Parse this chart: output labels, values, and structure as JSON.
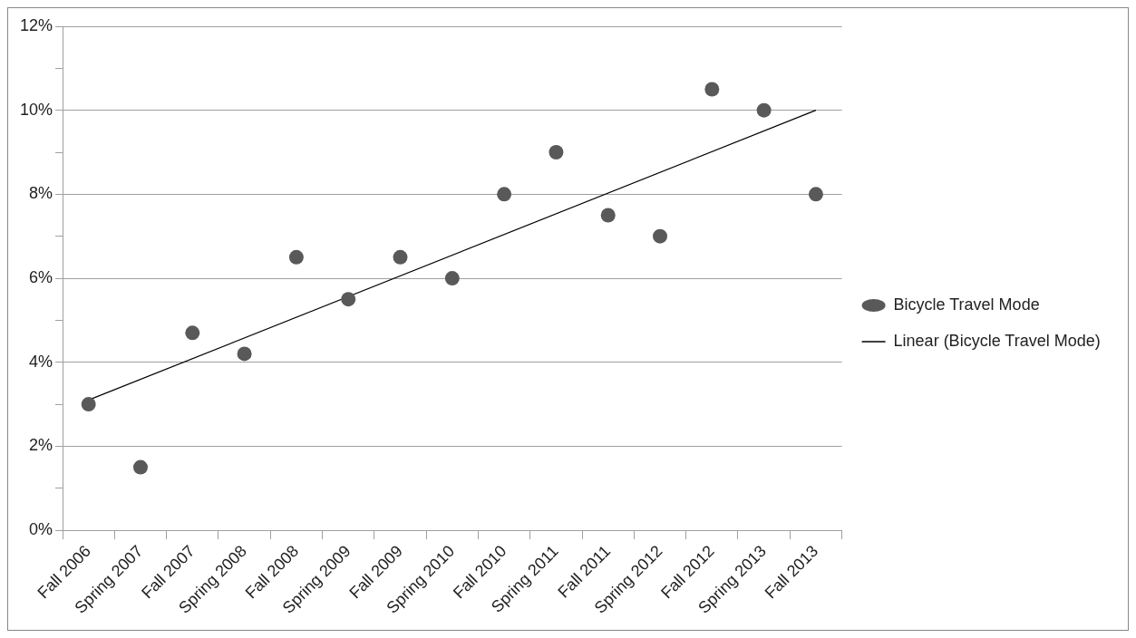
{
  "chart_data": {
    "type": "scatter",
    "categories": [
      "Fall 2006",
      "Spring 2007",
      "Fall 2007",
      "Spring 2008",
      "Fall 2008",
      "Spring 2009",
      "Fall 2009",
      "Spring 2010",
      "Fall 2010",
      "Spring 2011",
      "Fall 2011",
      "Spring 2012",
      "Fall 2012",
      "Spring 2013",
      "Fall 2013"
    ],
    "series": [
      {
        "name": "Bicycle Travel Mode",
        "color": "#595959",
        "marker": "circle",
        "values": [
          3.0,
          1.5,
          4.7,
          4.2,
          6.5,
          5.5,
          6.5,
          6.0,
          8.0,
          9.0,
          7.5,
          7.0,
          10.5,
          10.0,
          8.0
        ]
      },
      {
        "name": "Linear (Bicycle Travel Mode)",
        "type": "line",
        "color": "#000000",
        "line_style": "solid",
        "marker": "none",
        "x": [
          "Fall 2006",
          "Fall 2013"
        ],
        "values": [
          3.1,
          10.0
        ]
      }
    ],
    "ylim": [
      0,
      12
    ],
    "yticks": [
      {
        "value": 0,
        "label": "0%"
      },
      {
        "value": 1,
        "label": null
      },
      {
        "value": 2,
        "label": "2%"
      },
      {
        "value": 3,
        "label": null
      },
      {
        "value": 4,
        "label": "4%"
      },
      {
        "value": 5,
        "label": null
      },
      {
        "value": 6,
        "label": "6%"
      },
      {
        "value": 7,
        "label": null
      },
      {
        "value": 8,
        "label": "8%"
      },
      {
        "value": 9,
        "label": null
      },
      {
        "value": 10,
        "label": "10%"
      },
      {
        "value": 11,
        "label": null
      },
      {
        "value": 12,
        "label": "12%"
      }
    ],
    "grid": "y",
    "legend": "right"
  }
}
